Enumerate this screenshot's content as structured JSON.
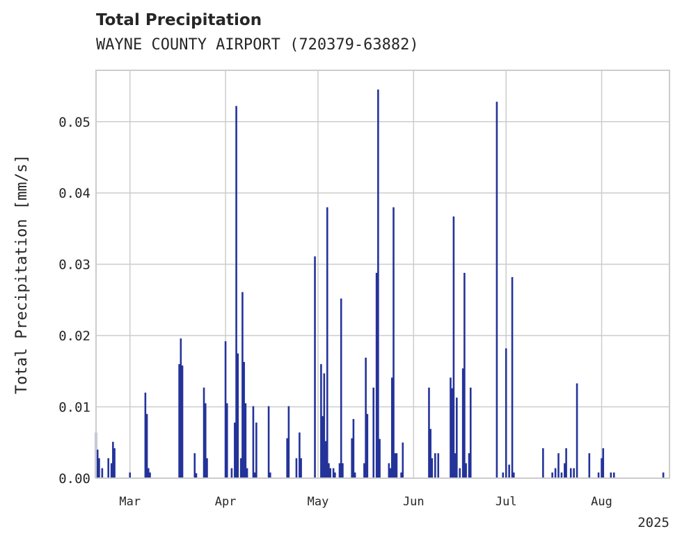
{
  "chart_data": {
    "type": "bar",
    "title": "Total Precipitation",
    "subtitle": "WAYNE COUNTY AIRPORT (720379-63882)",
    "ylabel": "Total Precipitation [mm/s]",
    "xlabel": "",
    "ylim": [
      0,
      0.0572
    ],
    "xlim": [
      "2025-02-18",
      "2025-08-23"
    ],
    "yticks": [
      0.0,
      0.01,
      0.02,
      0.03,
      0.04,
      0.05
    ],
    "ytick_labels": [
      "0.00",
      "0.01",
      "0.02",
      "0.03",
      "0.04",
      "0.05"
    ],
    "xticks": [
      "2025-03-01",
      "2025-04-01",
      "2025-05-01",
      "2025-06-01",
      "2025-07-01",
      "2025-08-01"
    ],
    "xtick_labels": [
      "Mar",
      "Apr",
      "May",
      "Jun",
      "Jul",
      "Aug"
    ],
    "year_label": "2025",
    "grid": true,
    "color": "#24339a",
    "points": [
      [
        "2025-02-18",
        0.0064
      ],
      [
        "2025-02-18T12:00",
        0.004
      ],
      [
        "2025-02-19",
        0.0028
      ],
      [
        "2025-02-20",
        0.0014
      ],
      [
        "2025-02-22",
        0.0028
      ],
      [
        "2025-02-23",
        0.0021
      ],
      [
        "2025-02-23T12:00",
        0.0051
      ],
      [
        "2025-02-24",
        0.0042
      ],
      [
        "2025-03-01",
        0.0008
      ],
      [
        "2025-03-06",
        0.012
      ],
      [
        "2025-03-06T12:00",
        0.009
      ],
      [
        "2025-03-07",
        0.0014
      ],
      [
        "2025-03-07T12:00",
        0.0008
      ],
      [
        "2025-03-17",
        0.016
      ],
      [
        "2025-03-17T12:00",
        0.0196
      ],
      [
        "2025-03-18",
        0.0158
      ],
      [
        "2025-03-22",
        0.0035
      ],
      [
        "2025-03-22T12:00",
        0.0007
      ],
      [
        "2025-03-25",
        0.0127
      ],
      [
        "2025-03-25T12:00",
        0.0105
      ],
      [
        "2025-03-26",
        0.0028
      ],
      [
        "2025-04-01",
        0.0192
      ],
      [
        "2025-04-01T12:00",
        0.0105
      ],
      [
        "2025-04-03",
        0.0014
      ],
      [
        "2025-04-04",
        0.0078
      ],
      [
        "2025-04-04T12:00",
        0.0522
      ],
      [
        "2025-04-05",
        0.0175
      ],
      [
        "2025-04-06",
        0.0028
      ],
      [
        "2025-04-06T12:00",
        0.0261
      ],
      [
        "2025-04-07",
        0.0163
      ],
      [
        "2025-04-07T12:00",
        0.0105
      ],
      [
        "2025-04-08",
        0.0014
      ],
      [
        "2025-04-10",
        0.0101
      ],
      [
        "2025-04-10T12:00",
        0.0008
      ],
      [
        "2025-04-11",
        0.0078
      ],
      [
        "2025-04-15",
        0.0101
      ],
      [
        "2025-04-15T12:00",
        0.0008
      ],
      [
        "2025-04-21",
        0.0056
      ],
      [
        "2025-04-21T12:00",
        0.0101
      ],
      [
        "2025-04-24",
        0.0028
      ],
      [
        "2025-04-25",
        0.0064
      ],
      [
        "2025-04-25T12:00",
        0.0028
      ],
      [
        "2025-04-30",
        0.0311
      ],
      [
        "2025-05-02",
        0.016
      ],
      [
        "2025-05-02T12:00",
        0.0087
      ],
      [
        "2025-05-03",
        0.0147
      ],
      [
        "2025-05-03T12:00",
        0.0052
      ],
      [
        "2025-05-04",
        0.038
      ],
      [
        "2025-05-04T12:00",
        0.0021
      ],
      [
        "2025-05-05",
        0.0014
      ],
      [
        "2025-05-06",
        0.0014
      ],
      [
        "2025-05-06T12:00",
        0.0008
      ],
      [
        "2025-05-08",
        0.0021
      ],
      [
        "2025-05-08T12:00",
        0.0252
      ],
      [
        "2025-05-09",
        0.0021
      ],
      [
        "2025-05-12",
        0.0056
      ],
      [
        "2025-05-12T12:00",
        0.0083
      ],
      [
        "2025-05-13",
        0.0008
      ],
      [
        "2025-05-16",
        0.0021
      ],
      [
        "2025-05-16T12:00",
        0.0169
      ],
      [
        "2025-05-17",
        0.009
      ],
      [
        "2025-05-19",
        0.0127
      ],
      [
        "2025-05-20",
        0.0288
      ],
      [
        "2025-05-20T12:00",
        0.0545
      ],
      [
        "2025-05-21",
        0.0055
      ],
      [
        "2025-05-24",
        0.0021
      ],
      [
        "2025-05-24T12:00",
        0.0014
      ],
      [
        "2025-05-25",
        0.0141
      ],
      [
        "2025-05-25T12:00",
        0.038
      ],
      [
        "2025-05-26",
        0.0035
      ],
      [
        "2025-05-26T12:00",
        0.0035
      ],
      [
        "2025-05-28",
        0.0008
      ],
      [
        "2025-05-28T12:00",
        0.005
      ],
      [
        "2025-06-06",
        0.0127
      ],
      [
        "2025-06-06T12:00",
        0.0069
      ],
      [
        "2025-06-07",
        0.0028
      ],
      [
        "2025-06-08",
        0.0035
      ],
      [
        "2025-06-09",
        0.0035
      ],
      [
        "2025-06-13",
        0.0141
      ],
      [
        "2025-06-13T12:00",
        0.0126
      ],
      [
        "2025-06-14",
        0.0367
      ],
      [
        "2025-06-14T12:00",
        0.0035
      ],
      [
        "2025-06-15",
        0.0113
      ],
      [
        "2025-06-16",
        0.0014
      ],
      [
        "2025-06-17",
        0.0154
      ],
      [
        "2025-06-17T12:00",
        0.0288
      ],
      [
        "2025-06-18",
        0.0021
      ],
      [
        "2025-06-19",
        0.0035
      ],
      [
        "2025-06-19T12:00",
        0.0127
      ],
      [
        "2025-06-28",
        0.0528
      ],
      [
        "2025-06-30",
        0.0008
      ],
      [
        "2025-07-01",
        0.0182
      ],
      [
        "2025-07-02",
        0.0019
      ],
      [
        "2025-07-03",
        0.0282
      ],
      [
        "2025-07-03T12:00",
        0.0008
      ],
      [
        "2025-07-13",
        0.0042
      ],
      [
        "2025-07-16",
        0.0008
      ],
      [
        "2025-07-17",
        0.0014
      ],
      [
        "2025-07-18",
        0.0035
      ],
      [
        "2025-07-19",
        0.0008
      ],
      [
        "2025-07-20",
        0.0021
      ],
      [
        "2025-07-20T12:00",
        0.0042
      ],
      [
        "2025-07-22",
        0.0014
      ],
      [
        "2025-07-23",
        0.0014
      ],
      [
        "2025-07-24",
        0.0133
      ],
      [
        "2025-07-28",
        0.0035
      ],
      [
        "2025-07-31",
        0.0008
      ],
      [
        "2025-08-01",
        0.0028
      ],
      [
        "2025-08-01T12:00",
        0.0042
      ],
      [
        "2025-08-04",
        0.0008
      ],
      [
        "2025-08-05",
        0.0008
      ],
      [
        "2025-08-21",
        0.0008
      ]
    ]
  }
}
